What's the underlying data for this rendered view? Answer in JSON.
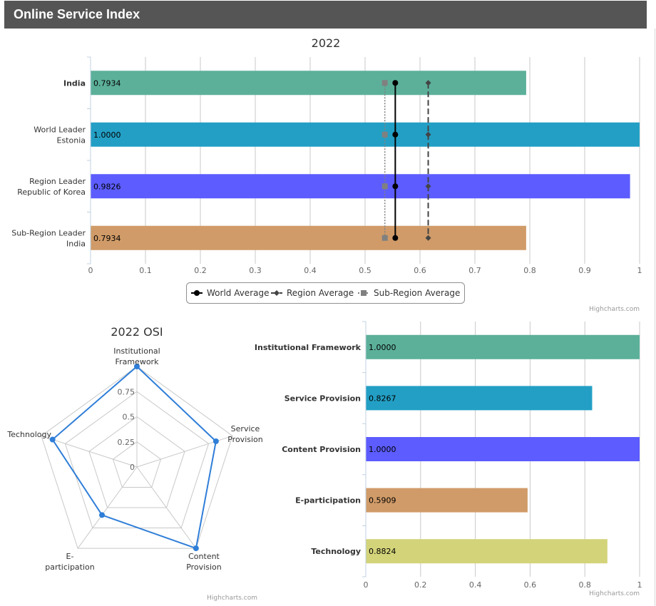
{
  "header": {
    "title": "Online Service Index"
  },
  "credits": "Highcharts.com",
  "colors": {
    "teal": "#5cb09a",
    "blue": "#239fc5",
    "violet": "#5c5cff",
    "tan": "#d09b68",
    "olive": "#d3d37a",
    "radar": "#2f7ed8",
    "world": "#000000",
    "region": "#444444",
    "subregion": "#808080"
  },
  "chart_data": [
    {
      "type": "bar",
      "title": "2022",
      "categories": [
        [
          "India"
        ],
        [
          "World Leader",
          "Estonia"
        ],
        [
          "Region Leader",
          "Republic of Korea"
        ],
        [
          "Sub-Region Leader",
          "India"
        ]
      ],
      "values": [
        0.7934,
        1.0,
        0.9826,
        0.7934
      ],
      "data_labels": [
        "0.7934",
        "1.0000",
        "0.9826",
        "0.7934"
      ],
      "bar_colors": [
        "#5cb09a",
        "#239fc5",
        "#5c5cff",
        "#d09b68"
      ],
      "x_ticks": [
        "0",
        "0.1",
        "0.2",
        "0.3",
        "0.4",
        "0.5",
        "0.6",
        "0.7",
        "0.8",
        "0.9",
        "1"
      ],
      "xlim": [
        0,
        1
      ],
      "reference_lines": [
        {
          "name": "World Average",
          "value": 0.555,
          "style": "solid",
          "marker": "circle",
          "color": "#000000"
        },
        {
          "name": "Region Average",
          "value": 0.615,
          "style": "dashed",
          "marker": "diamond",
          "color": "#444444"
        },
        {
          "name": "Sub-Region Average",
          "value": 0.536,
          "style": "dotted",
          "marker": "square",
          "color": "#808080"
        }
      ],
      "legend": [
        "World Average",
        "Region Average",
        "Sub-Region Average"
      ],
      "grid": true
    },
    {
      "type": "radar",
      "title": "2022 OSI",
      "axes": [
        [
          "Institutional",
          "Framework"
        ],
        [
          "Service",
          "Provision"
        ],
        [
          "Content",
          "Provision"
        ],
        [
          "E-",
          "participation"
        ],
        [
          "Technology"
        ]
      ],
      "values": [
        1.0,
        0.8267,
        1.0,
        0.5909,
        0.8824
      ],
      "ticks": [
        "0",
        "0.25",
        "0.5",
        "0.75"
      ],
      "ylim": [
        0,
        1
      ]
    },
    {
      "type": "bar",
      "categories": [
        "Institutional Framework",
        "Service Provision",
        "Content Provision",
        "E-participation",
        "Technology"
      ],
      "values": [
        1.0,
        0.8267,
        1.0,
        0.5909,
        0.8824
      ],
      "data_labels": [
        "1.0000",
        "0.8267",
        "1.0000",
        "0.5909",
        "0.8824"
      ],
      "bar_colors": [
        "#5cb09a",
        "#239fc5",
        "#5c5cff",
        "#d09b68",
        "#d3d37a"
      ],
      "x_ticks": [
        "0",
        "0.2",
        "0.4",
        "0.6",
        "0.8",
        "1"
      ],
      "xlim": [
        0,
        1
      ],
      "grid": true
    }
  ]
}
